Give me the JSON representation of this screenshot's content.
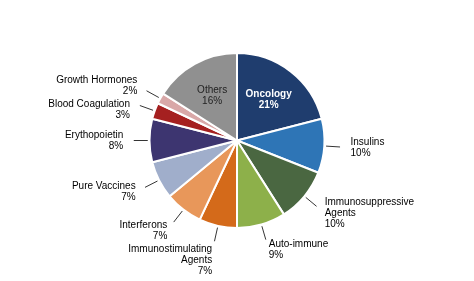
{
  "chart_data": {
    "type": "pie",
    "categories": [
      "Oncology\n21%",
      "Insulins\n10%",
      "Immunosuppressive\nAgents\n10%",
      "Auto-immune\n9%",
      "Immunostimulating\nAgents\n7%",
      "Interferons\n7%",
      "Pure Vaccines\n7%",
      "Erythopoietin\n8%",
      "Blood Coagulation\n3%",
      "Growth Hormones\n2%",
      "Others\n16%"
    ],
    "values": [
      21,
      10,
      10,
      9,
      7,
      7,
      7,
      8,
      3,
      2,
      16
    ],
    "colors": [
      "#1F3D6E",
      "#2E75B6",
      "#4A6741",
      "#8DB04A",
      "#D46A1A",
      "#E8975A",
      "#A0AECB",
      "#3D3570",
      "#A52020",
      "#D9A8A8",
      "#909090"
    ]
  }
}
